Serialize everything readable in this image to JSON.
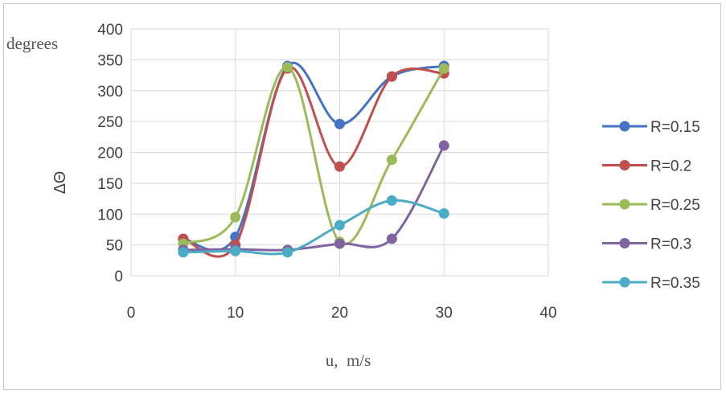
{
  "chart_data": {
    "type": "scatter",
    "smooth_lines": true,
    "xlabel": "u,  m/s",
    "ylabel": "ΔΘ",
    "yunit": "degrees",
    "xlim": [
      0,
      40
    ],
    "ylim": [
      0,
      400
    ],
    "xticks": [
      0,
      10,
      20,
      30,
      40
    ],
    "yticks": [
      0,
      50,
      100,
      150,
      200,
      250,
      300,
      350,
      400
    ],
    "grid": true,
    "legend_position": "right",
    "x": [
      5,
      10,
      15,
      20,
      25,
      30
    ],
    "series": [
      {
        "name": "R=0.15",
        "color": "#4472c4",
        "values": [
          60,
          63,
          340,
          246,
          323,
          340
        ]
      },
      {
        "name": "R=0.2",
        "color": "#c0504d",
        "values": [
          60,
          50,
          336,
          177,
          323,
          328
        ]
      },
      {
        "name": "R=0.25",
        "color": "#9bbb59",
        "values": [
          52,
          95,
          338,
          55,
          188,
          336
        ]
      },
      {
        "name": "R=0.3",
        "color": "#8064a2",
        "values": [
          42,
          43,
          42,
          52,
          60,
          211
        ]
      },
      {
        "name": "R=0.35",
        "color": "#4bacc6",
        "values": [
          38,
          40,
          38,
          82,
          122,
          101
        ]
      }
    ]
  }
}
